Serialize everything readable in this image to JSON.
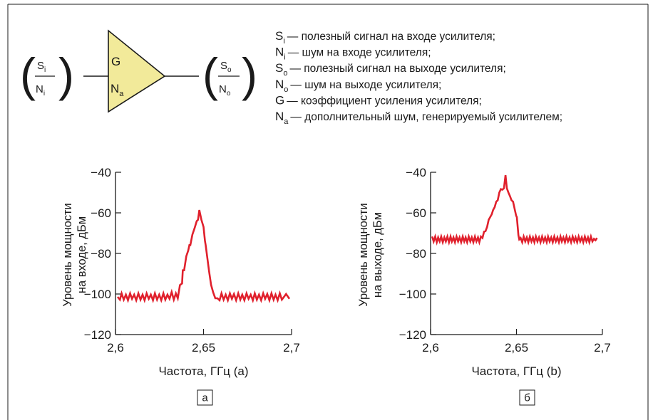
{
  "amplifier": {
    "input_signal": "S",
    "input_signal_sub": "i",
    "input_noise": "N",
    "input_noise_sub": "i",
    "output_signal": "S",
    "output_signal_sub": "o",
    "output_noise": "N",
    "output_noise_sub": "o",
    "gain_label": "G",
    "added_noise": "N",
    "added_noise_sub": "a",
    "colors": {
      "fill": "#f2ea9a",
      "stroke": "#1a1a1a"
    }
  },
  "legend": [
    {
      "symbol": "S",
      "sub": "i",
      "text": "— полезный сигнал на входе усилителя;"
    },
    {
      "symbol": "N",
      "sub": "i",
      "text": "— шум на входе усилителя;"
    },
    {
      "symbol": "S",
      "sub": "o",
      "text": "— полезный сигнал на выходе усилителя;"
    },
    {
      "symbol": "N",
      "sub": "o",
      "text": "— шум на выходе усилителя;"
    },
    {
      "symbol": "G",
      "sub": "",
      "text": "— коэффициент усиления усилителя;"
    },
    {
      "symbol": "N",
      "sub": "a",
      "text": "— дополнительный шум, генерируемый усилителем;"
    }
  ],
  "chart_data": [
    {
      "type": "line",
      "panel": "a",
      "xlabel": "Частота, ГГц (a)",
      "ylabel_lines": [
        "Уровень мощности",
        "на входе, дБм"
      ],
      "xlim": [
        2.6,
        2.7
      ],
      "ylim": [
        -120,
        -40
      ],
      "xticks": [
        2.6,
        2.65,
        2.7
      ],
      "xtick_labels": [
        "2,6",
        "2,65",
        "2,7"
      ],
      "yticks": [
        -40,
        -60,
        -80,
        -100,
        -120
      ],
      "ytick_labels": [
        "−40",
        "−60",
        "−80",
        "−100",
        "−120"
      ],
      "grid": false,
      "color": "#e0202c",
      "x": [
        2.6012,
        2.6025,
        2.6035,
        2.6047,
        2.6059,
        2.6071,
        2.6083,
        2.6094,
        2.6106,
        2.6118,
        2.613,
        2.6142,
        2.6154,
        2.6165,
        2.6177,
        2.6189,
        2.6201,
        2.6213,
        2.6224,
        2.6236,
        2.6248,
        2.626,
        2.6272,
        2.6283,
        2.6295,
        2.6307,
        2.6319,
        2.6331,
        2.6343,
        2.6354,
        2.6366,
        2.6378,
        2.6382,
        2.639,
        2.6402,
        2.6413,
        2.642,
        2.6425,
        2.6437,
        2.6449,
        2.6461,
        2.6469,
        2.6476,
        2.6488,
        2.65,
        2.6508,
        2.6512,
        2.652,
        2.6531,
        2.6543,
        2.6555,
        2.6567,
        2.6579,
        2.6591,
        2.6602,
        2.6614,
        2.6626,
        2.6638,
        2.665,
        2.6661,
        2.6673,
        2.6685,
        2.6697,
        2.6709,
        2.672,
        2.6732,
        2.6744,
        2.6756,
        2.6768,
        2.678,
        2.6791,
        2.6803,
        2.6815,
        2.6827,
        2.6839,
        2.685,
        2.6862,
        2.6874,
        2.6886,
        2.6898,
        2.6909,
        2.6921,
        2.6933,
        2.6945,
        2.6957,
        2.6969,
        2.6988
      ],
      "y": [
        -101.4,
        -102.8,
        -99.7,
        -102.8,
        -100.3,
        -103.1,
        -99.7,
        -102.4,
        -100.3,
        -103.1,
        -99.7,
        -102.8,
        -100.3,
        -103.1,
        -99.7,
        -102.4,
        -100.3,
        -103.1,
        -99.7,
        -102.8,
        -100.3,
        -103.1,
        -99.7,
        -102.8,
        -100.3,
        -102.4,
        -99.0,
        -102.8,
        -99.7,
        -102.1,
        -95.6,
        -94.8,
        -88.3,
        -88.3,
        -81.4,
        -78.6,
        -75.9,
        -75.9,
        -70.7,
        -67.6,
        -64.1,
        -63.4,
        -58.6,
        -63.4,
        -66.9,
        -73.8,
        -75.9,
        -81.0,
        -88.6,
        -95.5,
        -99.3,
        -102.1,
        -102.1,
        -103.1,
        -99.7,
        -102.8,
        -100.3,
        -103.1,
        -99.7,
        -102.4,
        -100.0,
        -103.1,
        -99.7,
        -102.8,
        -100.3,
        -103.1,
        -99.7,
        -102.4,
        -100.3,
        -103.1,
        -99.7,
        -102.8,
        -100.3,
        -103.1,
        -99.7,
        -102.4,
        -100.0,
        -103.1,
        -99.7,
        -102.8,
        -100.3,
        -103.1,
        -99.7,
        -102.8,
        -101.4,
        -100.0,
        -102.4
      ],
      "caption": "а"
    },
    {
      "type": "line",
      "panel": "b",
      "xlabel": "Частота, ГГц (b)",
      "ylabel_lines": [
        "Уровень мощности",
        "на выходе, дБм"
      ],
      "xlim": [
        2.6,
        2.7
      ],
      "ylim": [
        -120,
        -40
      ],
      "xticks": [
        2.6,
        2.65,
        2.7
      ],
      "xtick_labels": [
        "2,6",
        "2,65",
        "2,7"
      ],
      "yticks": [
        -40,
        -60,
        -80,
        -100,
        -120
      ],
      "ytick_labels": [
        "−40",
        "−60",
        "−80",
        "−100",
        "−120"
      ],
      "grid": false,
      "color": "#e0202c",
      "x": [
        2.6009,
        2.6018,
        2.6027,
        2.6036,
        2.6044,
        2.6053,
        2.6062,
        2.6071,
        2.608,
        2.6089,
        2.6098,
        2.6107,
        2.6116,
        2.6124,
        2.6133,
        2.6142,
        2.6151,
        2.616,
        2.6169,
        2.6178,
        2.6187,
        2.6196,
        2.6204,
        2.6213,
        2.6222,
        2.6231,
        2.624,
        2.6249,
        2.6258,
        2.6267,
        2.6276,
        2.6284,
        2.6293,
        2.6302,
        2.6311,
        2.632,
        2.6329,
        2.6338,
        2.6347,
        2.6356,
        2.6364,
        2.6373,
        2.6382,
        2.6391,
        2.64,
        2.6409,
        2.6418,
        2.6427,
        2.6436,
        2.6444,
        2.6453,
        2.6462,
        2.6471,
        2.648,
        2.6489,
        2.6498,
        2.6502,
        2.6507,
        2.6511,
        2.6516,
        2.6524,
        2.6533,
        2.6542,
        2.6551,
        2.656,
        2.6569,
        2.6578,
        2.6587,
        2.6596,
        2.6604,
        2.6613,
        2.6622,
        2.6631,
        2.664,
        2.6649,
        2.6658,
        2.6667,
        2.6676,
        2.6684,
        2.6693,
        2.6702,
        2.6711,
        2.672,
        2.6729,
        2.6738,
        2.6747,
        2.6756,
        2.6764,
        2.6773,
        2.6782,
        2.6791,
        2.68,
        2.6809,
        2.6818,
        2.6827,
        2.6836,
        2.6844,
        2.6853,
        2.6862,
        2.6871,
        2.688,
        2.6889,
        2.6898,
        2.6907,
        2.6916,
        2.6924,
        2.6933,
        2.6942,
        2.6951,
        2.696,
        2.6969
      ],
      "y": [
        -71.7,
        -74.1,
        -71.7,
        -74.5,
        -72.1,
        -74.1,
        -71.7,
        -74.5,
        -72.1,
        -74.1,
        -71.7,
        -74.5,
        -71.7,
        -74.1,
        -72.1,
        -74.5,
        -71.7,
        -74.1,
        -72.1,
        -74.5,
        -71.7,
        -74.1,
        -72.1,
        -74.5,
        -71.7,
        -74.1,
        -72.1,
        -74.5,
        -71.7,
        -74.1,
        -72.1,
        -74.5,
        -71.7,
        -72.4,
        -69.3,
        -69.0,
        -66.9,
        -63.4,
        -62.1,
        -60.7,
        -58.6,
        -57.2,
        -54.5,
        -53.8,
        -50.0,
        -48.3,
        -48.6,
        -47.9,
        -41.4,
        -47.9,
        -50.0,
        -51.7,
        -53.8,
        -54.5,
        -57.9,
        -61.4,
        -62.1,
        -66.9,
        -71.0,
        -73.1,
        -72.4,
        -74.5,
        -71.7,
        -74.1,
        -72.1,
        -74.5,
        -71.7,
        -74.1,
        -72.1,
        -74.5,
        -71.7,
        -74.1,
        -72.1,
        -74.5,
        -71.7,
        -74.1,
        -72.1,
        -74.5,
        -71.7,
        -74.1,
        -72.1,
        -74.5,
        -71.7,
        -74.1,
        -72.1,
        -74.5,
        -71.7,
        -74.1,
        -72.1,
        -74.5,
        -71.7,
        -74.1,
        -72.1,
        -74.5,
        -71.7,
        -74.1,
        -72.1,
        -74.5,
        -71.7,
        -74.1,
        -72.1,
        -74.5,
        -71.7,
        -74.1,
        -72.1,
        -74.5,
        -71.7,
        -74.1,
        -72.8,
        -73.5,
        -72.4
      ],
      "caption": "б"
    }
  ]
}
